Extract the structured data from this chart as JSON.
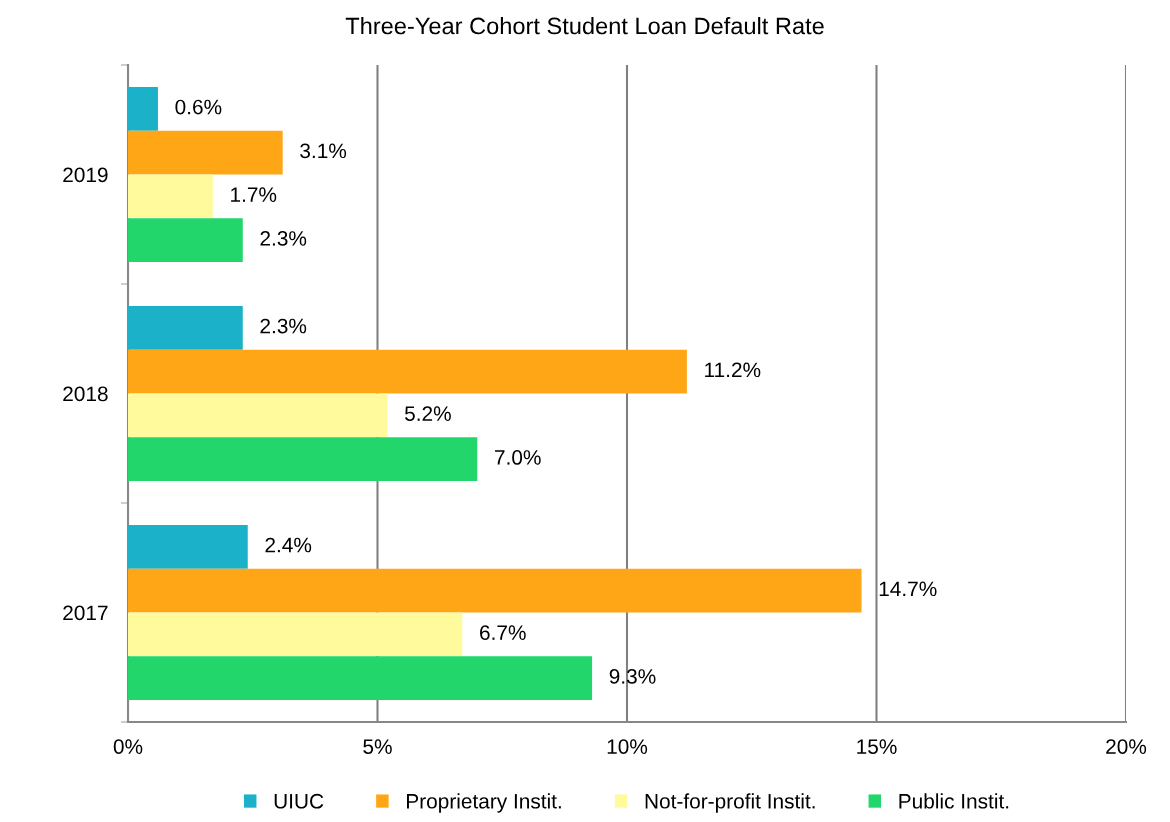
{
  "chart_data": {
    "type": "bar",
    "orientation": "horizontal",
    "title": "Three-Year Cohort Student Loan Default Rate",
    "categories": [
      "2019",
      "2018",
      "2017"
    ],
    "series": [
      {
        "name": "UIUC",
        "color": "#1bb1c9",
        "values": [
          0.6,
          2.3,
          2.4
        ],
        "value_labels": [
          "0.6%",
          "2.3%",
          "2.4%"
        ]
      },
      {
        "name": "Proprietary Instit.",
        "color": "#ffa616",
        "values": [
          3.1,
          11.2,
          14.7
        ],
        "value_labels": [
          "3.1%",
          "11.2%",
          "14.7%"
        ]
      },
      {
        "name": "Not-for-profit Instit.",
        "color": "#fffa9c",
        "values": [
          1.7,
          5.2,
          6.7
        ],
        "value_labels": [
          "1.7%",
          "5.2%",
          "6.7%"
        ]
      },
      {
        "name": "Public Instit.",
        "color": "#22d66b",
        "values": [
          2.3,
          7.0,
          9.3
        ],
        "value_labels": [
          "2.3%",
          "7.0%",
          "9.3%"
        ]
      }
    ],
    "xlim": [
      0,
      20
    ],
    "xticks": [
      {
        "value": 0,
        "label": "0%"
      },
      {
        "value": 5,
        "label": "5%"
      },
      {
        "value": 10,
        "label": "10%"
      },
      {
        "value": 15,
        "label": "15%"
      },
      {
        "value": 20,
        "label": "20%"
      }
    ],
    "grid": "x",
    "legend": "bottom"
  }
}
